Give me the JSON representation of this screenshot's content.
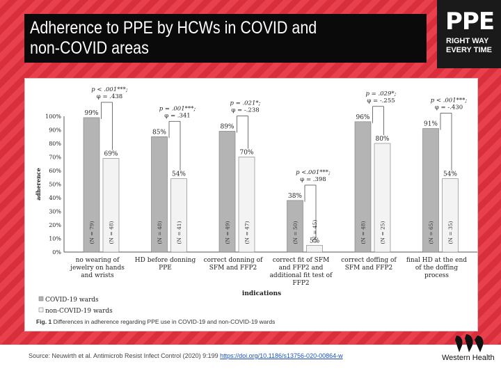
{
  "slide": {
    "title_line1": "Adherence to PPE by HCWs in COVID and",
    "title_line2": "non-COVID areas",
    "logo_text": "PPE",
    "logo_tagline_1": "RIGHT WAY",
    "logo_tagline_2": "EVERY TIME",
    "source_text": "Source: Neuwirth et al. Antimicrob Resist Infect Control (2020) 9:199 ",
    "source_link": "https://doi.org/10.1186/s13756-020-00864-w",
    "org_name": "Western Health"
  },
  "colors": {
    "covid": "#b4b4b4",
    "noncovid": "#f3f3f3",
    "brand_red": "#e8404c"
  },
  "chart_data": {
    "type": "bar",
    "title": "Differences in adherence regarding PPE use in COVID-19 and non-COVID-19 wards",
    "fig_label": "Fig. 1",
    "xlabel": "indications",
    "ylabel": "adherence",
    "ylim": [
      0,
      100
    ],
    "yticks": [
      "0%",
      "10%",
      "20%",
      "30%",
      "40%",
      "50%",
      "60%",
      "70%",
      "80%",
      "90%",
      "100%"
    ],
    "categories": [
      [
        "no wearing of",
        "jewelry on hands",
        "and wrists"
      ],
      [
        "HD before donning",
        "PPE"
      ],
      [
        "correct donning of",
        "SFM and FFP2"
      ],
      [
        "correct fit of SFM",
        "and FFP2 and",
        "additional fit test of",
        "FFP2"
      ],
      [
        "correct doffing of",
        "SFM and FFP2"
      ],
      [
        "final HD at the end",
        "of the doffing",
        "process"
      ]
    ],
    "series": [
      {
        "name": "COVID-19 wards",
        "values": [
          99,
          85,
          89,
          38,
          96,
          91
        ],
        "value_labels": [
          "99%",
          "85%",
          "89%",
          "38%",
          "96%",
          "91%"
        ],
        "n_labels": [
          "(N = 79)",
          "(N = 48)",
          "(N = 49)",
          "(N = 50)",
          "(N = 48)",
          "(N = 65)"
        ]
      },
      {
        "name": "non-COVID-19 wards",
        "values": [
          69,
          54,
          70,
          5,
          80,
          54
        ],
        "value_labels": [
          "69%",
          "54%",
          "70%",
          "5%",
          "80%",
          "54%"
        ],
        "n_labels": [
          "(N = 48)",
          "(N = 41)",
          "(N = 47)",
          "(N = 45)",
          "(N = 25)",
          "(N = 35)"
        ]
      }
    ],
    "annotations": [
      {
        "p": "p < .001***;",
        "phi": "φ = .438"
      },
      {
        "p": "p = .001***;",
        "phi": "φ = .341"
      },
      {
        "p": "p = .021*;",
        "phi": "φ = -.238"
      },
      {
        "p": "p <.001***;",
        "phi": "φ = .398"
      },
      {
        "p": "p = .029*;",
        "phi": "φ = -.255"
      },
      {
        "p": "p < .001***;",
        "phi": "φ = -.430"
      }
    ],
    "legend": [
      "COVID-19 wards",
      "non-COVID-19 wards"
    ]
  }
}
